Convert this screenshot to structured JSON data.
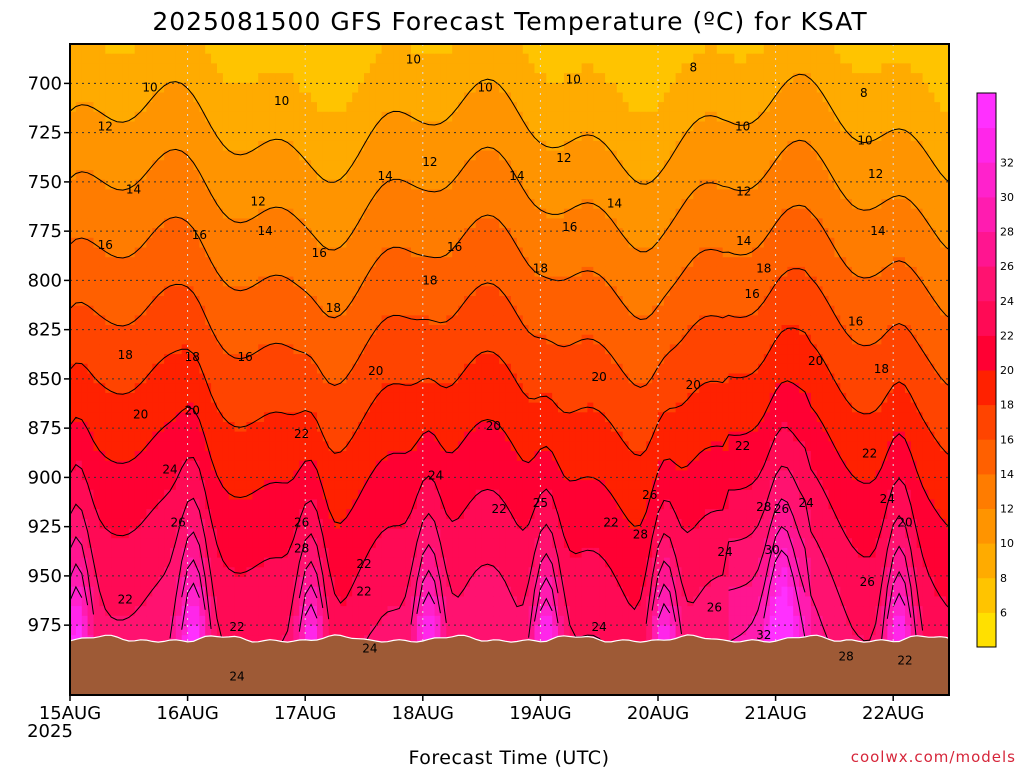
{
  "chart_data": {
    "type": "heatmap",
    "title": "2025081500 GFS Forecast Temperature (ºC) for KSAT",
    "xlabel": "Forecast Time (UTC)",
    "ylabel": "",
    "credit": "coolwx.com/models",
    "x_ticks": [
      "15AUG",
      "16AUG",
      "17AUG",
      "18AUG",
      "19AUG",
      "20AUG",
      "21AUG",
      "22AUG"
    ],
    "x_year": "2025",
    "xlim_days": [
      0,
      7.5
    ],
    "y_ticks": [
      "700",
      "725",
      "750",
      "775",
      "800",
      "825",
      "850",
      "875",
      "900",
      "925",
      "950",
      "975"
    ],
    "y_tick_values": [
      700,
      725,
      750,
      775,
      800,
      825,
      850,
      875,
      900,
      925,
      950,
      975
    ],
    "ylim": [
      680,
      985
    ],
    "y_inverted": true,
    "colorbar": {
      "labels": [
        "6",
        "8",
        "10",
        "12",
        "14",
        "16",
        "18",
        "20",
        "22",
        "24",
        "26",
        "28",
        "30",
        "32"
      ],
      "levels": [
        4,
        6,
        8,
        10,
        12,
        14,
        16,
        18,
        20,
        22,
        24,
        26,
        28,
        30,
        32,
        34
      ],
      "colors": [
        "#ffe000",
        "#ffc400",
        "#ffab00",
        "#ff9400",
        "#ff7c00",
        "#ff6000",
        "#ff4400",
        "#ff2100",
        "#ff0033",
        "#ff0a55",
        "#ff1270",
        "#ff1590",
        "#ff1cb0",
        "#ff22cc",
        "#ff26ea",
        "#ff30ff"
      ]
    },
    "ground_color": "#9e5a36",
    "contour_labels": [
      {
        "text": "10",
        "day": 0.68,
        "p": 704
      },
      {
        "text": "10",
        "day": 1.8,
        "p": 711
      },
      {
        "text": "10",
        "day": 2.92,
        "p": 690
      },
      {
        "text": "10",
        "day": 3.53,
        "p": 704
      },
      {
        "text": "10",
        "day": 4.28,
        "p": 700
      },
      {
        "text": "8",
        "day": 5.3,
        "p": 694
      },
      {
        "text": "8",
        "day": 6.75,
        "p": 707
      },
      {
        "text": "10",
        "day": 5.72,
        "p": 724
      },
      {
        "text": "10",
        "day": 6.76,
        "p": 731
      },
      {
        "text": "12",
        "day": 0.3,
        "p": 724
      },
      {
        "text": "12",
        "day": 3.06,
        "p": 742
      },
      {
        "text": "12",
        "day": 4.2,
        "p": 740
      },
      {
        "text": "12",
        "day": 5.73,
        "p": 757
      },
      {
        "text": "12",
        "day": 6.85,
        "p": 748
      },
      {
        "text": "14",
        "day": 0.54,
        "p": 756
      },
      {
        "text": "12",
        "day": 1.6,
        "p": 762
      },
      {
        "text": "14",
        "day": 2.68,
        "p": 749
      },
      {
        "text": "14",
        "day": 3.8,
        "p": 749
      },
      {
        "text": "14",
        "day": 4.63,
        "p": 763
      },
      {
        "text": "14",
        "day": 5.73,
        "p": 782
      },
      {
        "text": "14",
        "day": 6.87,
        "p": 777
      },
      {
        "text": "16",
        "day": 0.3,
        "p": 784
      },
      {
        "text": "16",
        "day": 1.1,
        "p": 779
      },
      {
        "text": "14",
        "day": 1.66,
        "p": 777
      },
      {
        "text": "16",
        "day": 2.12,
        "p": 788
      },
      {
        "text": "16",
        "day": 3.27,
        "p": 785
      },
      {
        "text": "16",
        "day": 4.25,
        "p": 775
      },
      {
        "text": "18",
        "day": 3.06,
        "p": 802
      },
      {
        "text": "18",
        "day": 4.0,
        "p": 796
      },
      {
        "text": "18",
        "day": 5.9,
        "p": 796
      },
      {
        "text": "16",
        "day": 5.8,
        "p": 809
      },
      {
        "text": "16",
        "day": 6.68,
        "p": 823
      },
      {
        "text": "18",
        "day": 2.24,
        "p": 816
      },
      {
        "text": "18",
        "day": 0.47,
        "p": 840
      },
      {
        "text": "18",
        "day": 1.04,
        "p": 841
      },
      {
        "text": "16",
        "day": 1.49,
        "p": 841
      },
      {
        "text": "20",
        "day": 2.6,
        "p": 848
      },
      {
        "text": "20",
        "day": 4.5,
        "p": 851
      },
      {
        "text": "20",
        "day": 5.3,
        "p": 855
      },
      {
        "text": "20",
        "day": 6.34,
        "p": 843
      },
      {
        "text": "18",
        "day": 6.9,
        "p": 847
      },
      {
        "text": "20",
        "day": 0.6,
        "p": 870
      },
      {
        "text": "20",
        "day": 1.04,
        "p": 868
      },
      {
        "text": "22",
        "day": 1.97,
        "p": 880
      },
      {
        "text": "20",
        "day": 3.6,
        "p": 876
      },
      {
        "text": "22",
        "day": 5.72,
        "p": 886
      },
      {
        "text": "22",
        "day": 6.8,
        "p": 890
      },
      {
        "text": "24",
        "day": 0.85,
        "p": 898
      },
      {
        "text": "24",
        "day": 3.11,
        "p": 901
      },
      {
        "text": "22",
        "day": 3.65,
        "p": 918
      },
      {
        "text": "25",
        "day": 4.0,
        "p": 915
      },
      {
        "text": "26",
        "day": 4.93,
        "p": 911
      },
      {
        "text": "22",
        "day": 4.6,
        "p": 925
      },
      {
        "text": "24",
        "day": 6.95,
        "p": 913
      },
      {
        "text": "20",
        "day": 7.1,
        "p": 925
      },
      {
        "text": "26",
        "day": 0.92,
        "p": 925
      },
      {
        "text": "26",
        "day": 1.97,
        "p": 925
      },
      {
        "text": "28",
        "day": 1.97,
        "p": 938
      },
      {
        "text": "28",
        "day": 4.85,
        "p": 931
      },
      {
        "text": "28",
        "day": 5.9,
        "p": 917
      },
      {
        "text": "26",
        "day": 6.05,
        "p": 918
      },
      {
        "text": "24",
        "day": 6.26,
        "p": 915
      },
      {
        "text": "24",
        "day": 5.57,
        "p": 940
      },
      {
        "text": "30",
        "day": 5.97,
        "p": 939
      },
      {
        "text": "22",
        "day": 2.5,
        "p": 946
      },
      {
        "text": "22",
        "day": 2.5,
        "p": 960
      },
      {
        "text": "22",
        "day": 0.47,
        "p": 964
      },
      {
        "text": "22",
        "day": 1.42,
        "p": 978
      },
      {
        "text": "24",
        "day": 4.5,
        "p": 978
      },
      {
        "text": "26",
        "day": 5.48,
        "p": 968
      },
      {
        "text": "26",
        "day": 6.78,
        "p": 955
      },
      {
        "text": "24",
        "day": 2.55,
        "p": 989
      },
      {
        "text": "32",
        "day": 5.9,
        "p": 982
      },
      {
        "text": "28",
        "day": 6.6,
        "p": 993
      },
      {
        "text": "22",
        "day": 7.1,
        "p": 995
      },
      {
        "text": "24",
        "day": 1.42,
        "p": 1003
      }
    ]
  }
}
